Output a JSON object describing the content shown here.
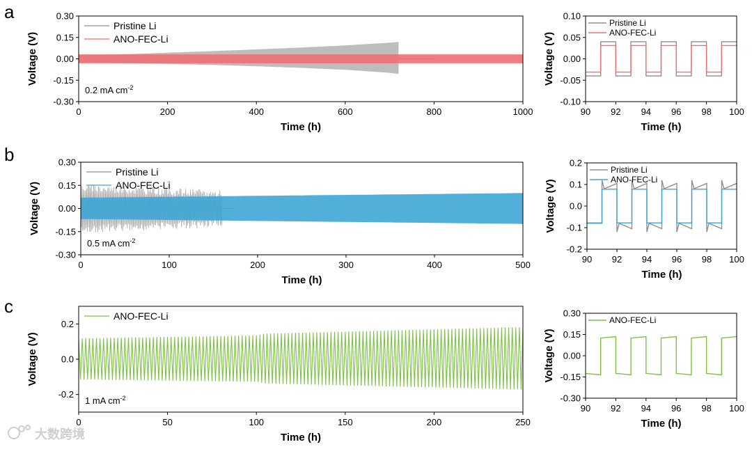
{
  "panel_letters": [
    "a",
    "b",
    "c"
  ],
  "watermark": {
    "text": "大数跨境"
  },
  "colors": {
    "pristine": "#8f8f8f",
    "pristine_fill": "#b9b9b9",
    "ano_a": "#ee6f72",
    "ano_b": "#3fa6d6",
    "ano_c": "#7cc242",
    "axis": "#000000"
  },
  "chart_data": [
    {
      "id": "a_main",
      "panel": "a",
      "type": "line",
      "xlabel": "Time (h)",
      "ylabel": "Voltage (V)",
      "xlim": [
        0,
        1000
      ],
      "ylim": [
        -0.3,
        0.3
      ],
      "xticks": [
        0,
        200,
        400,
        600,
        800,
        1000
      ],
      "yticks": [
        -0.3,
        -0.15,
        0.0,
        0.15,
        0.3
      ],
      "ytick_labels": [
        "-0.30",
        "-0.15",
        "0.00",
        "0.15",
        "0.30"
      ],
      "annotation": {
        "prefix": "0.2 mA cm",
        "sup": "-2"
      },
      "legend_position": "top-left",
      "series": [
        {
          "name": "Pristine Li",
          "color": "#8f8f8f",
          "render": "band",
          "x": [
            0,
            100,
            200,
            300,
            400,
            500,
            600,
            700,
            720
          ],
          "upper": [
            0.022,
            0.032,
            0.043,
            0.054,
            0.066,
            0.079,
            0.094,
            0.113,
            0.118
          ],
          "lower": [
            -0.022,
            -0.03,
            -0.036,
            -0.043,
            -0.052,
            -0.063,
            -0.077,
            -0.098,
            -0.106
          ],
          "tail": {
            "x": [
              720,
              800
            ],
            "y": [
              0.0,
              0.0
            ]
          }
        },
        {
          "name": "ANO-FEC-Li",
          "color": "#ee6f72",
          "render": "band",
          "x": [
            0,
            1000
          ],
          "upper": [
            0.031,
            0.031
          ],
          "lower": [
            -0.031,
            -0.031
          ]
        }
      ]
    },
    {
      "id": "a_zoom",
      "panel": "a",
      "type": "line",
      "xlabel": "Time (h)",
      "ylabel": "Voltage (V)",
      "xlim": [
        90,
        100
      ],
      "ylim": [
        -0.1,
        0.1
      ],
      "xticks": [
        90,
        92,
        94,
        96,
        98,
        100
      ],
      "yticks": [
        -0.1,
        -0.05,
        0.0,
        0.05,
        0.1
      ],
      "ytick_labels": [
        "-0.10",
        "-0.05",
        "0.00",
        "0.05",
        "0.10"
      ],
      "legend_position": "top-left",
      "legend_small": true,
      "series": [
        {
          "name": "Pristine Li",
          "color": "#8f8f8f",
          "render": "square",
          "amplitude": 0.04,
          "period": 2,
          "phase": 91,
          "spike": 0.0
        },
        {
          "name": "ANO-FEC-Li",
          "color": "#ee6f72",
          "render": "square",
          "amplitude": 0.031,
          "period": 2,
          "phase": 91,
          "spike": 0.0
        }
      ]
    },
    {
      "id": "b_main",
      "panel": "b",
      "type": "line",
      "xlabel": "Time (h)",
      "ylabel": "Voltage (V)",
      "xlim": [
        0,
        500
      ],
      "ylim": [
        -0.3,
        0.3
      ],
      "xticks": [
        0,
        100,
        200,
        300,
        400,
        500
      ],
      "yticks": [
        -0.3,
        -0.15,
        0.0,
        0.15,
        0.3
      ],
      "ytick_labels": [
        "-0.30",
        "-0.15",
        "0.00",
        "0.15",
        "0.30"
      ],
      "annotation": {
        "prefix": "0.5 mA cm",
        "sup": "-2"
      },
      "legend_position": "top-left",
      "series": [
        {
          "name": "Pristine Li",
          "color": "#8f8f8f",
          "render": "noisy",
          "x": [
            0,
            160
          ],
          "amplitude": [
            0.11,
            0.07
          ],
          "noise": 0.05,
          "tail": {
            "x": [
              155,
              175
            ],
            "y": [
              0.0,
              0.0
            ]
          }
        },
        {
          "name": "ANO-FEC-Li",
          "color": "#3fa6d6",
          "render": "band",
          "x": [
            0,
            500
          ],
          "upper": [
            0.07,
            0.1
          ],
          "lower": [
            -0.068,
            -0.1
          ]
        }
      ]
    },
    {
      "id": "b_zoom",
      "panel": "b",
      "type": "line",
      "xlabel": "Time (h)",
      "ylabel": "Voltage (V)",
      "xlim": [
        90,
        100
      ],
      "ylim": [
        -0.2,
        0.2
      ],
      "xticks": [
        90,
        92,
        94,
        96,
        98,
        100
      ],
      "yticks": [
        -0.2,
        -0.1,
        0.0,
        0.1,
        0.2
      ],
      "ytick_labels": [
        "-0.2",
        "-0.1",
        "0.0",
        "0.1",
        "0.2"
      ],
      "legend_position": "top-left",
      "legend_small": true,
      "series": [
        {
          "name": "Pristine Li",
          "color": "#8f8f8f",
          "render": "square",
          "amplitude": 0.08,
          "period": 2,
          "phase": 91,
          "spike": 0.04,
          "decay": 0.025
        },
        {
          "name": "ANO-FEC-Li",
          "color": "#3fa6d6",
          "render": "square",
          "amplitude": 0.078,
          "period": 2,
          "phase": 91,
          "spike": 0.0
        }
      ]
    },
    {
      "id": "c_main",
      "panel": "c",
      "type": "line",
      "xlabel": "Time (h)",
      "ylabel": "Voltage (V)",
      "xlim": [
        0,
        250
      ],
      "ylim": [
        -0.3,
        0.3
      ],
      "xticks": [
        0,
        50,
        100,
        150,
        200,
        250
      ],
      "yticks": [
        -0.2,
        0.0,
        0.2
      ],
      "ytick_labels": [
        "-0.2",
        "0.0",
        "0.2"
      ],
      "annotation": {
        "prefix": "1 mA cm",
        "sup": "-2"
      },
      "legend_position": "top-left",
      "series": [
        {
          "name": "ANO-FEC-Li",
          "color": "#7cc242",
          "render": "oscillation",
          "x": [
            0,
            100,
            105,
            250
          ],
          "upper": [
            0.118,
            0.135,
            0.145,
            0.182
          ],
          "lower": [
            -0.115,
            -0.128,
            -0.138,
            -0.172
          ],
          "cycles": 125
        }
      ]
    },
    {
      "id": "c_zoom",
      "panel": "c",
      "type": "line",
      "xlabel": "Time (h)",
      "ylabel": "Voltage (V)",
      "xlim": [
        90,
        100
      ],
      "ylim": [
        -0.3,
        0.3
      ],
      "xticks": [
        90,
        92,
        94,
        96,
        98,
        100
      ],
      "yticks": [
        -0.3,
        -0.15,
        0.0,
        0.15,
        0.3
      ],
      "ytick_labels": [
        "-0.30",
        "-0.15",
        "0.00",
        "0.15",
        "0.30"
      ],
      "legend_position": "top-left",
      "legend_small": true,
      "series": [
        {
          "name": "ANO-FEC-Li",
          "color": "#7cc242",
          "render": "square",
          "amplitude": 0.125,
          "period": 2,
          "phase": 91,
          "spike": 0.0,
          "slope": 0.01
        }
      ]
    }
  ]
}
